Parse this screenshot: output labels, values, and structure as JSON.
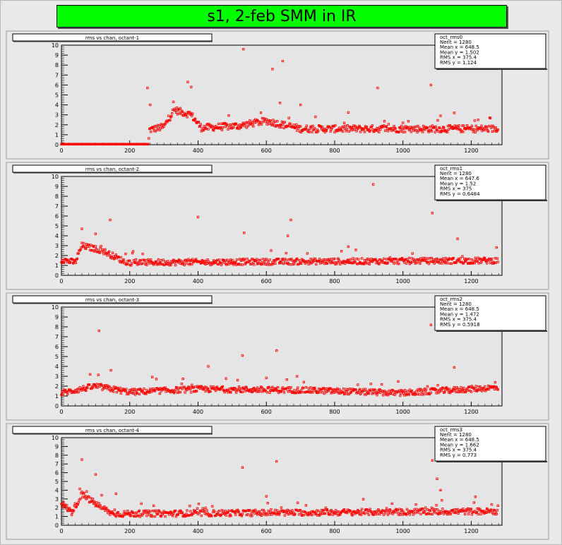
{
  "canvas_title": "s1, 2-feb SMM in IR",
  "colors": {
    "marker": "#ff0000",
    "title_bg": "#00ff00",
    "pad_bg": "#e9e9e9",
    "frame_bg": "#e5e5e5"
  },
  "chart_data": [
    {
      "type": "scatter",
      "title": "rms vs chan, octant-1",
      "stats": {
        "name": "oct_rms0",
        "lines": [
          "Nent = 1280",
          "Mean x = 648.5",
          "Mean y = 1.502",
          "RMS x = 375.4",
          "RMS y = 1.124"
        ]
      },
      "xlim": [
        0,
        1290
      ],
      "ylim": [
        0,
        10
      ],
      "xticks": [
        0,
        200,
        400,
        600,
        800,
        1000,
        1200
      ],
      "yticks": [
        0,
        1,
        2,
        3,
        4,
        5,
        6,
        7,
        8,
        9,
        10
      ],
      "profile": {
        "segments": [
          [
            0,
            0.05
          ],
          [
            255,
            0.05
          ],
          [
            258,
            1.5
          ],
          [
            300,
            1.8
          ],
          [
            330,
            3.5
          ],
          [
            380,
            3.0
          ],
          [
            410,
            1.7
          ],
          [
            520,
            1.9
          ],
          [
            600,
            2.4
          ],
          [
            700,
            1.6
          ],
          [
            1290,
            1.6
          ]
        ],
        "noise": 0.35
      },
      "outliers": [
        [
          533,
          9.6
        ],
        [
          648,
          8.4
        ],
        [
          618,
          7.6
        ],
        [
          926,
          5.7
        ],
        [
          1082,
          6.0
        ],
        [
          370,
          6.3
        ],
        [
          252,
          5.7
        ],
        [
          380,
          5.8
        ],
        [
          260,
          4.0
        ],
        [
          640,
          4.2
        ],
        [
          700,
          4.0
        ],
        [
          1110,
          2.9
        ],
        [
          1150,
          3.2
        ],
        [
          1000,
          2.2
        ],
        [
          1220,
          2.5
        ]
      ]
    },
    {
      "type": "scatter",
      "title": "rms vs chan, octant-2",
      "stats": {
        "name": "oct_rms1",
        "lines": [
          "Nent = 1280",
          "Mean x = 647.6",
          "Mean y = 1.52",
          "RMS x = 375",
          "RMS y = 0.6484"
        ]
      },
      "xlim": [
        0,
        1290
      ],
      "ylim": [
        0,
        10
      ],
      "xticks": [
        0,
        200,
        400,
        600,
        800,
        1000,
        1200
      ],
      "yticks": [
        0,
        1,
        2,
        3,
        4,
        5,
        6,
        7,
        8,
        9,
        10
      ],
      "profile": {
        "segments": [
          [
            0,
            1.6
          ],
          [
            40,
            1.3
          ],
          [
            60,
            3.0
          ],
          [
            120,
            2.5
          ],
          [
            190,
            1.3
          ],
          [
            1290,
            1.5
          ]
        ],
        "noise": 0.3
      },
      "outliers": [
        [
          913,
          9.2
        ],
        [
          1086,
          6.3
        ],
        [
          400,
          5.9
        ],
        [
          143,
          5.6
        ],
        [
          535,
          4.3
        ],
        [
          663,
          4.0
        ],
        [
          672,
          5.6
        ],
        [
          60,
          4.7
        ],
        [
          100,
          4.2
        ],
        [
          1160,
          3.7
        ],
        [
          840,
          2.9
        ]
      ]
    },
    {
      "type": "scatter",
      "title": "rms vs chan, octant-3",
      "stats": {
        "name": "oct_rms2",
        "lines": [
          "Nent = 1280",
          "Mean x = 648.5",
          "Mean y = 1.472",
          "RMS x = 375.4",
          "RMS y = 0.5918"
        ]
      },
      "xlim": [
        0,
        1290
      ],
      "ylim": [
        0,
        10
      ],
      "xticks": [
        0,
        200,
        400,
        600,
        800,
        1000,
        1200
      ],
      "yticks": [
        0,
        1,
        2,
        3,
        4,
        5,
        6,
        7,
        8,
        9,
        10
      ],
      "profile": {
        "segments": [
          [
            0,
            1.3
          ],
          [
            100,
            2.0
          ],
          [
            200,
            1.4
          ],
          [
            400,
            1.7
          ],
          [
            700,
            1.6
          ],
          [
            1000,
            1.3
          ],
          [
            1290,
            1.9
          ]
        ],
        "noise": 0.3
      },
      "outliers": [
        [
          110,
          7.6
        ],
        [
          1082,
          8.2
        ],
        [
          530,
          5.1
        ],
        [
          630,
          5.6
        ],
        [
          430,
          4.0
        ],
        [
          1150,
          3.9
        ],
        [
          145,
          3.6
        ],
        [
          690,
          3.0
        ]
      ]
    },
    {
      "type": "scatter",
      "title": "rms vs chan, octant-4",
      "stats": {
        "name": "oct_rms3",
        "lines": [
          "Nent = 1280",
          "Mean x = 648.5",
          "Mean y = 1.662",
          "RMS x = 375.4",
          "RMS y = 0.773"
        ]
      },
      "xlim": [
        0,
        1290
      ],
      "ylim": [
        0,
        10
      ],
      "xticks": [
        0,
        200,
        400,
        600,
        800,
        1000,
        1200
      ],
      "yticks": [
        0,
        1,
        2,
        3,
        4,
        5,
        6,
        7,
        8,
        9,
        10
      ],
      "profile": {
        "segments": [
          [
            0,
            2.5
          ],
          [
            30,
            1.5
          ],
          [
            60,
            3.5
          ],
          [
            110,
            2.2
          ],
          [
            150,
            1.3
          ],
          [
            1290,
            1.6
          ]
        ],
        "noise": 0.35
      },
      "outliers": [
        [
          530,
          6.6
        ],
        [
          630,
          7.3
        ],
        [
          1086,
          7.4
        ],
        [
          60,
          7.5
        ],
        [
          100,
          5.8
        ],
        [
          1100,
          5.3
        ],
        [
          1110,
          4.0
        ],
        [
          600,
          3.3
        ],
        [
          160,
          3.6
        ]
      ]
    }
  ]
}
